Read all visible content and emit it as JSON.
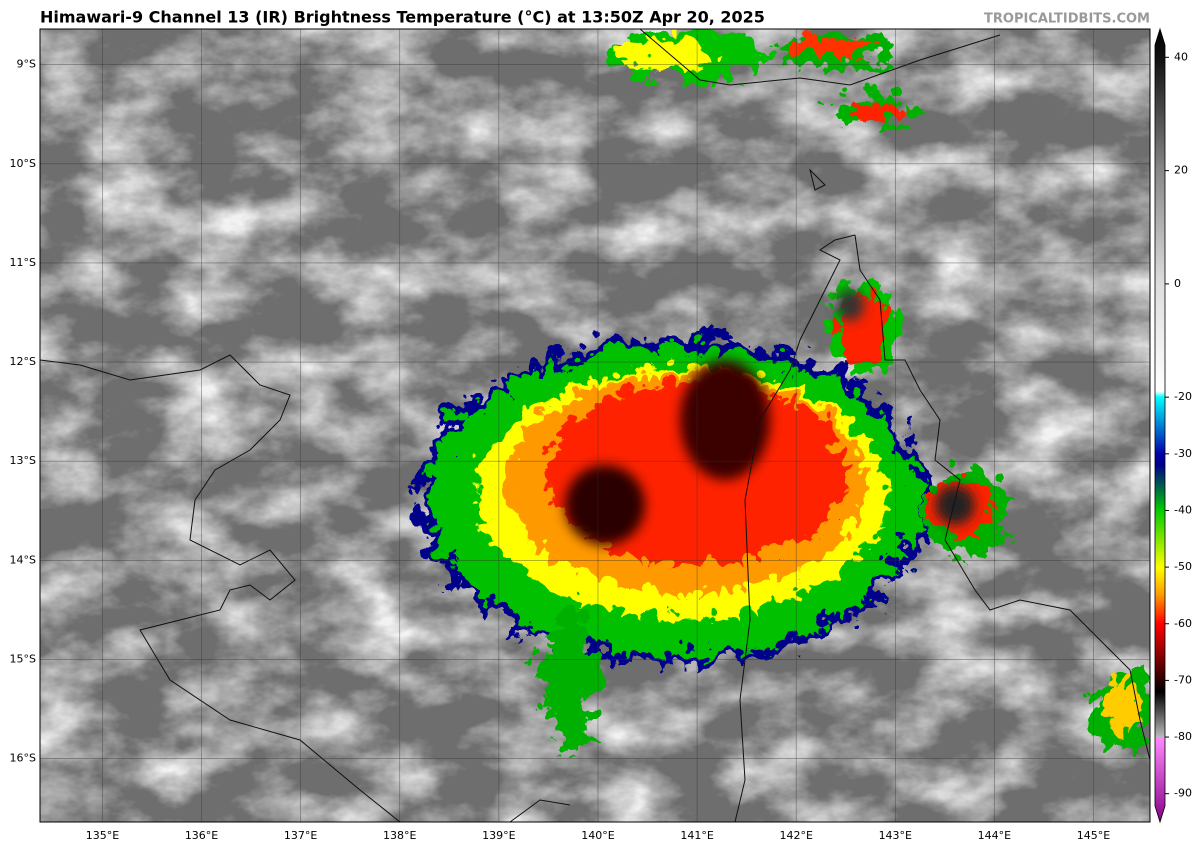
{
  "header": {
    "title": "Himawari-9 Channel 13 (IR) Brightness Temperature (°C) at 13:50Z Apr 20, 2025",
    "credit": "TROPICALTIDBITS.COM"
  },
  "map": {
    "lon_range": [
      134.37,
      145.57
    ],
    "lat_range": [
      -8.64,
      -16.64
    ],
    "lon_labels": [
      {
        "value": 135,
        "label": "135°E"
      },
      {
        "value": 136,
        "label": "136°E"
      },
      {
        "value": 137,
        "label": "137°E"
      },
      {
        "value": 138,
        "label": "138°E"
      },
      {
        "value": 139,
        "label": "139°E"
      },
      {
        "value": 140,
        "label": "140°E"
      },
      {
        "value": 141,
        "label": "141°E"
      },
      {
        "value": 142,
        "label": "142°E"
      },
      {
        "value": 143,
        "label": "143°E"
      },
      {
        "value": 144,
        "label": "144°E"
      },
      {
        "value": 145,
        "label": "145°E"
      }
    ],
    "lat_labels": [
      {
        "value": -9,
        "label": "9°S"
      },
      {
        "value": -10,
        "label": "10°S"
      },
      {
        "value": -11,
        "label": "11°S"
      },
      {
        "value": -12,
        "label": "12°S"
      },
      {
        "value": -13,
        "label": "13°S"
      },
      {
        "value": -14,
        "label": "14°S"
      },
      {
        "value": -15,
        "label": "15°S"
      },
      {
        "value": -16,
        "label": "16°S"
      }
    ]
  },
  "colorbar": {
    "range": [
      -95,
      45
    ],
    "ticks": [
      40,
      20,
      0,
      -20,
      -30,
      -40,
      -50,
      -60,
      -70,
      -80,
      -90
    ]
  }
}
